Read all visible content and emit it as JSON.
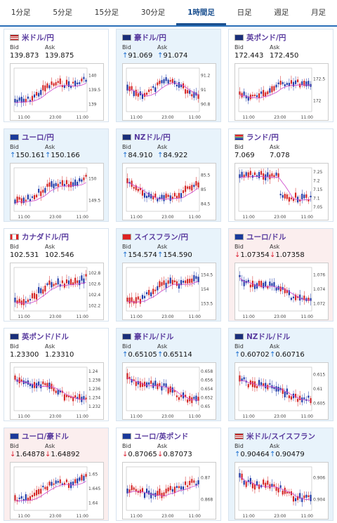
{
  "tabs": [
    "1分足",
    "5分足",
    "15分足",
    "30分足",
    "1時間足",
    "日足",
    "週足",
    "月足"
  ],
  "active_tab": 4,
  "bid_label": "Bid",
  "ask_label": "Ask",
  "x_ticks": [
    "11:00",
    "23:00",
    "11:00"
  ],
  "cards": [
    {
      "pair": "米ドル/円",
      "bid": "139.873",
      "ask": "139.875",
      "dir": "none",
      "bg": "neutral",
      "flag": "us",
      "yticks": [
        "140",
        "139.5",
        "139"
      ],
      "trend": "up"
    },
    {
      "pair": "豪ドル/円",
      "bid": "91.069",
      "ask": "91.074",
      "dir": "up",
      "bg": "up",
      "flag": "au",
      "yticks": [
        "91.2",
        "91",
        "90.8"
      ],
      "trend": "flat"
    },
    {
      "pair": "英ポンド/円",
      "bid": "172.443",
      "ask": "172.450",
      "dir": "none",
      "bg": "neutral",
      "flag": "gb",
      "yticks": [
        "172.5",
        "172"
      ],
      "trend": "upflat"
    },
    {
      "pair": "ユーロ/円",
      "bid": "150.161",
      "ask": "150.166",
      "dir": "up",
      "bg": "up",
      "flag": "eu",
      "yticks": [
        "150",
        "149.5"
      ],
      "trend": "up"
    },
    {
      "pair": "NZドル/円",
      "bid": "84.910",
      "ask": "84.922",
      "dir": "up",
      "bg": "up",
      "flag": "nz",
      "yticks": [
        "85.5",
        "85",
        "84.5"
      ],
      "trend": "dip"
    },
    {
      "pair": "ランド/円",
      "bid": "7.069",
      "ask": "7.078",
      "dir": "none",
      "bg": "neutral",
      "flag": "za",
      "yticks": [
        "7.25",
        "7.2",
        "7.15",
        "7.1",
        "7.05"
      ],
      "trend": "drop"
    },
    {
      "pair": "カナダドル/円",
      "bid": "102.531",
      "ask": "102.546",
      "dir": "none",
      "bg": "neutral",
      "flag": "ca",
      "yticks": [
        "102.8",
        "102.6",
        "102.4",
        "102.2"
      ],
      "trend": "up"
    },
    {
      "pair": "スイスフラン/円",
      "bid": "154.574",
      "ask": "154.590",
      "dir": "up",
      "bg": "up",
      "flag": "ch",
      "yticks": [
        "154.5",
        "154",
        "153.5"
      ],
      "trend": "up"
    },
    {
      "pair": "ユーロ/ドル",
      "bid": "1.07354",
      "ask": "1.07358",
      "dir": "down",
      "bg": "down",
      "flag": "eu",
      "yticks": [
        "1.076",
        "1.074",
        "1.072"
      ],
      "trend": "down"
    },
    {
      "pair": "英ポンド/ドル",
      "bid": "1.23300",
      "ask": "1.23310",
      "dir": "none",
      "bg": "neutral",
      "flag": "gb",
      "yticks": [
        "1.24",
        "1.238",
        "1.236",
        "1.234",
        "1.232"
      ],
      "trend": "down"
    },
    {
      "pair": "豪ドル/ドル",
      "bid": "0.65105",
      "ask": "0.65114",
      "dir": "up",
      "bg": "up",
      "flag": "au",
      "yticks": [
        "0.658",
        "0.656",
        "0.654",
        "0.652",
        "0.65"
      ],
      "trend": "down"
    },
    {
      "pair": "NZドル/ドル",
      "bid": "0.60702",
      "ask": "0.60716",
      "dir": "up",
      "bg": "up",
      "flag": "nz",
      "yticks": [
        "0.615",
        "0.61",
        "0.605"
      ],
      "trend": "down"
    },
    {
      "pair": "ユーロ/豪ドル",
      "bid": "1.64878",
      "ask": "1.64892",
      "dir": "down",
      "bg": "down",
      "flag": "eu",
      "yticks": [
        "1.65",
        "1.645",
        "1.64"
      ],
      "trend": "up"
    },
    {
      "pair": "ユーロ/英ポンド",
      "bid": "0.87065",
      "ask": "0.87073",
      "dir": "down",
      "bg": "neutral",
      "flag": "eu",
      "yticks": [
        "0.87",
        "0.868"
      ],
      "trend": "vup"
    },
    {
      "pair": "米ドル/スイスフラン",
      "bid": "0.90464",
      "ask": "0.90479",
      "dir": "up",
      "bg": "up",
      "flag": "us",
      "yticks": [
        "0.906",
        "0.904"
      ],
      "trend": "down"
    }
  ],
  "colors": {
    "up_candle": "#d42424",
    "down_candle": "#1f3aa8",
    "ma_line": "#cc44cc",
    "arrow_up": "#1c6fd1",
    "arrow_down": "#dd2222",
    "title": "#5a3c9f"
  }
}
